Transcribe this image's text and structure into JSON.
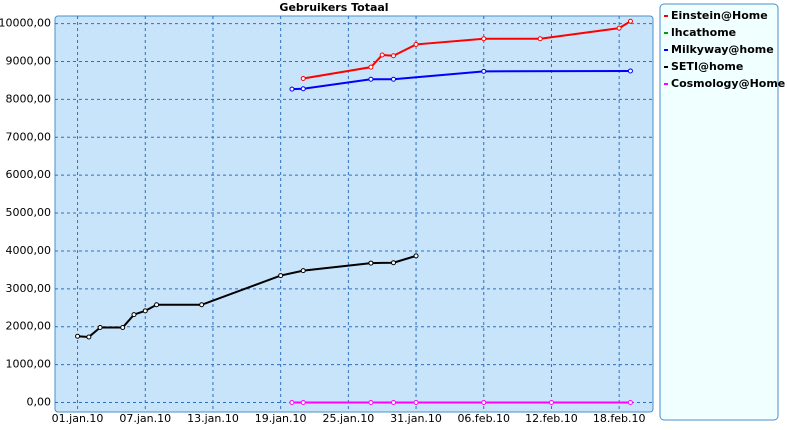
{
  "chart_data": {
    "type": "line",
    "title": "Gebruikers Totaal",
    "xlim": [
      "2009-12-30",
      "2010-02-21"
    ],
    "xticks": [
      {
        "value": "2010-01-01",
        "label": "01.jan.10"
      },
      {
        "value": "2010-01-07",
        "label": "07.jan.10"
      },
      {
        "value": "2010-01-13",
        "label": "13.jan.10"
      },
      {
        "value": "2010-01-19",
        "label": "19.jan.10"
      },
      {
        "value": "2010-01-25",
        "label": "25.jan.10"
      },
      {
        "value": "2010-01-31",
        "label": "31.jan.10"
      },
      {
        "value": "2010-02-06",
        "label": "06.feb.10"
      },
      {
        "value": "2010-02-12",
        "label": "12.feb.10"
      },
      {
        "value": "2010-02-18",
        "label": "18.feb.10"
      }
    ],
    "ylim": [
      -250,
      10200
    ],
    "yticks": [
      {
        "value": 0,
        "label": "0,00"
      },
      {
        "value": 1000,
        "label": "1000,00"
      },
      {
        "value": 2000,
        "label": "2000,00"
      },
      {
        "value": 3000,
        "label": "3000,00"
      },
      {
        "value": 4000,
        "label": "4000,00"
      },
      {
        "value": 5000,
        "label": "5000,00"
      },
      {
        "value": 6000,
        "label": "6000,00"
      },
      {
        "value": 7000,
        "label": "7000,00"
      },
      {
        "value": 8000,
        "label": "8000,00"
      },
      {
        "value": 9000,
        "label": "9000,00"
      },
      {
        "value": 10000,
        "label": "10000,00"
      }
    ],
    "grid": true,
    "legend": "right",
    "series": [
      {
        "name": "Einstein@Home",
        "color": "#ff0000",
        "x": [
          "2010-01-21",
          "2010-01-27",
          "2010-01-28",
          "2010-01-29",
          "2010-01-31",
          "2010-02-06",
          "2010-02-11",
          "2010-02-18",
          "2010-02-19"
        ],
        "values": [
          8550,
          8850,
          9170,
          9150,
          9450,
          9600,
          9600,
          9880,
          10060
        ]
      },
      {
        "name": "lhcathome",
        "color": "#00a000",
        "x": [],
        "values": []
      },
      {
        "name": "Milkyway@home",
        "color": "#0000ff",
        "x": [
          "2010-01-20",
          "2010-01-21",
          "2010-01-27",
          "2010-01-29",
          "2010-02-06",
          "2010-02-19"
        ],
        "values": [
          8270,
          8280,
          8530,
          8530,
          8740,
          8750
        ]
      },
      {
        "name": "SETI@home",
        "color": "#000000",
        "x": [
          "2010-01-01",
          "2010-01-02",
          "2010-01-03",
          "2010-01-05",
          "2010-01-06",
          "2010-01-07",
          "2010-01-08",
          "2010-01-12",
          "2010-01-19",
          "2010-01-21",
          "2010-01-27",
          "2010-01-29",
          "2010-01-31"
        ],
        "values": [
          1750,
          1730,
          1980,
          1980,
          2320,
          2420,
          2580,
          2580,
          3350,
          3480,
          3680,
          3690,
          3870
        ]
      },
      {
        "name": "Cosmology@Home",
        "color": "#ff00ff",
        "x": [
          "2010-01-20",
          "2010-01-21",
          "2010-01-27",
          "2010-01-29",
          "2010-01-31",
          "2010-02-06",
          "2010-02-12",
          "2010-02-19"
        ],
        "values": [
          0,
          0,
          0,
          0,
          0,
          0,
          0,
          0
        ]
      }
    ]
  }
}
